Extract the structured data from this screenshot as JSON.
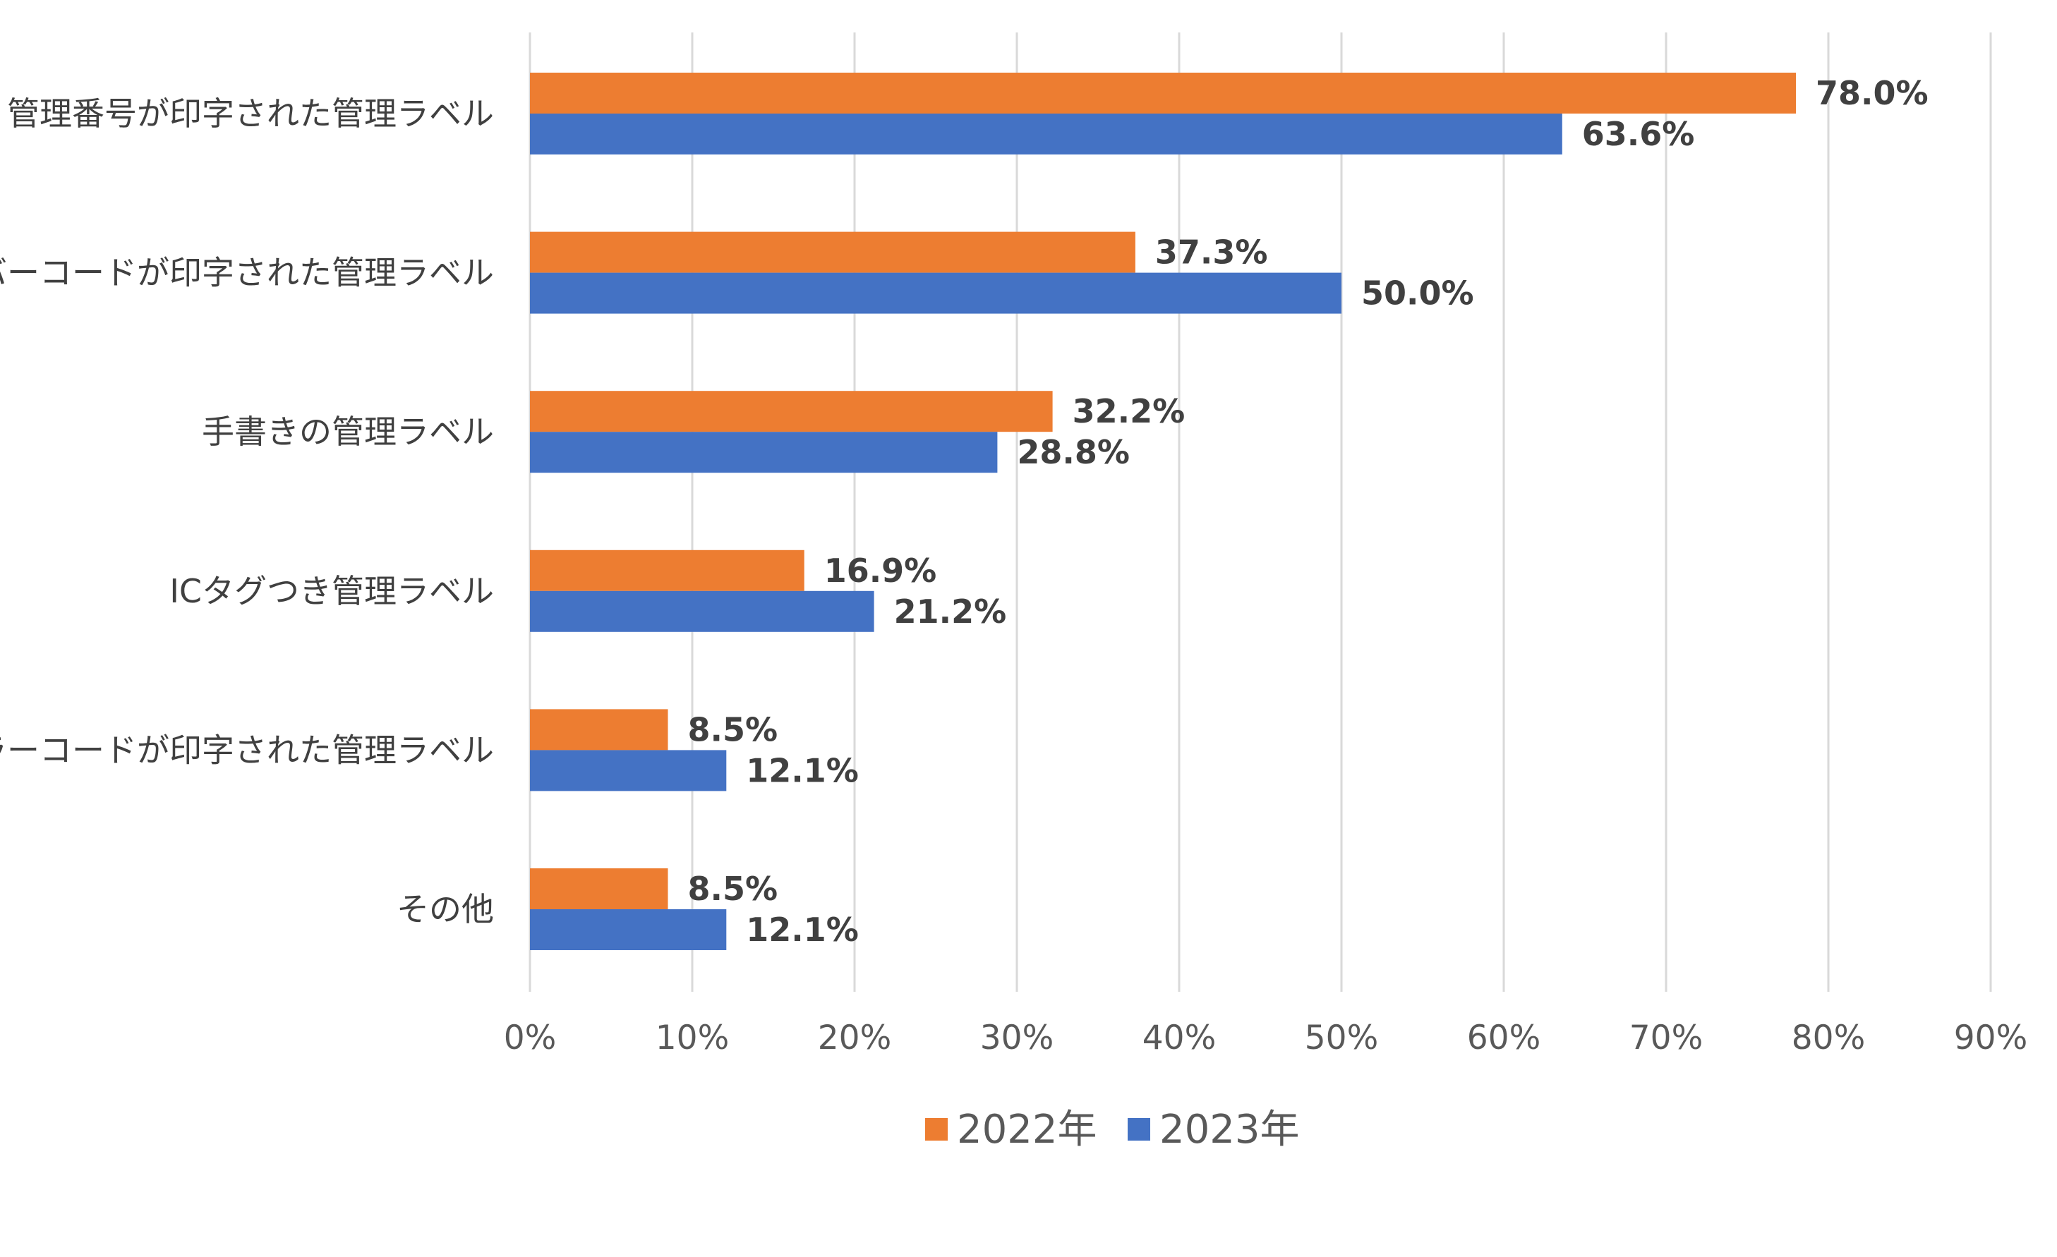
{
  "chart_data": {
    "type": "bar",
    "orientation": "horizontal",
    "categories": [
      "管理番号が印字された管理ラベル",
      "バーコードが印字された管理ラベル",
      "手書きの管理ラベル",
      "ICタグつき管理ラベル",
      "カラーコードが印字された管理ラベル",
      "その他"
    ],
    "series": [
      {
        "name": "2022年",
        "color": "#ED7D31",
        "values": [
          78.0,
          37.3,
          32.2,
          16.9,
          8.5,
          8.5
        ],
        "labels": [
          "78.0%",
          "37.3%",
          "32.2%",
          "16.9%",
          "8.5%",
          "8.5%"
        ]
      },
      {
        "name": "2023年",
        "color": "#4472C4",
        "values": [
          63.6,
          50.0,
          28.8,
          21.2,
          12.1,
          12.1
        ],
        "labels": [
          "63.6%",
          "50.0%",
          "28.8%",
          "21.2%",
          "12.1%",
          "12.1%"
        ]
      }
    ],
    "xlim": [
      0,
      90
    ],
    "xticks": [
      0,
      10,
      20,
      30,
      40,
      50,
      60,
      70,
      80,
      90
    ],
    "xtick_labels": [
      "0%",
      "10%",
      "20%",
      "30%",
      "40%",
      "50%",
      "60%",
      "70%",
      "80%",
      "90%"
    ],
    "grid": "vertical",
    "legend_position": "bottom",
    "title": "",
    "xlabel": "",
    "ylabel": ""
  }
}
